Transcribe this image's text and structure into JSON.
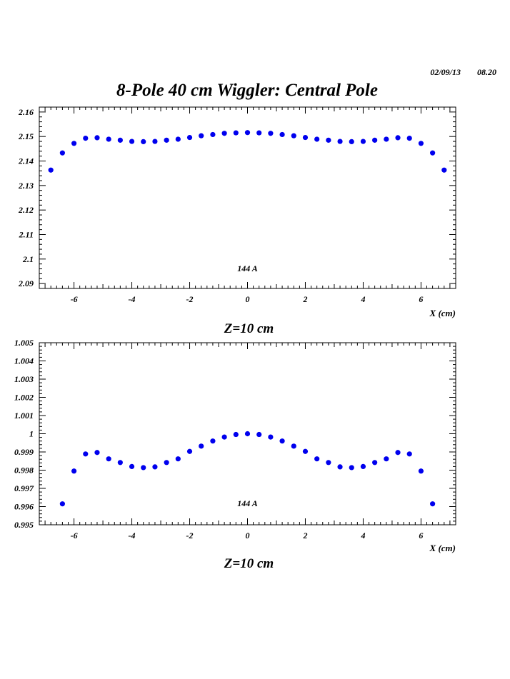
{
  "header": {
    "date": "02/09/13",
    "time": "08.20",
    "title": "8-Pole 40 cm Wiggler: Central Pole"
  },
  "chart_data": [
    {
      "type": "scatter",
      "title": "",
      "xlabel": "X (cm)",
      "ylabel": "",
      "caption": "Z=10 cm",
      "annotation": "144 A",
      "xlim": [
        -7.2,
        7.2
      ],
      "ylim": [
        2.088,
        2.162
      ],
      "xticks": [
        -6,
        -4,
        -2,
        0,
        2,
        4,
        6
      ],
      "xtick_labels": [
        "-6",
        "-4",
        "-2",
        "0",
        "2",
        "4",
        "6"
      ],
      "yticks": [
        2.09,
        2.1,
        2.11,
        2.12,
        2.13,
        2.14,
        2.15,
        2.16
      ],
      "ytick_labels": [
        "2.09",
        "2.1",
        "2.11",
        "2.12",
        "2.13",
        "2.14",
        "2.15",
        "2.16"
      ],
      "grid": false,
      "marker_color": "#0000ee",
      "series": [
        {
          "x": [
            -6.8,
            -6.4,
            -6.0,
            -5.6,
            -5.2,
            -4.8,
            -4.4,
            -4.0,
            -3.6,
            -3.2,
            -2.8,
            -2.4,
            -2.0,
            -1.6,
            -1.2,
            -0.8,
            -0.4,
            0.0,
            0.4,
            0.8,
            1.2,
            1.6,
            2.0,
            2.4,
            2.8,
            3.2,
            3.6,
            4.0,
            4.4,
            4.8,
            5.2,
            5.6,
            6.0,
            6.4,
            6.8
          ],
          "y": [
            2.1363,
            2.1433,
            2.1472,
            2.1493,
            2.1495,
            2.1489,
            2.1485,
            2.148,
            2.1479,
            2.148,
            2.1485,
            2.1489,
            2.1496,
            2.1503,
            2.1508,
            2.1513,
            2.1515,
            2.1516,
            2.1515,
            2.1513,
            2.1508,
            2.1503,
            2.1496,
            2.1489,
            2.1485,
            2.148,
            2.1479,
            2.148,
            2.1485,
            2.1489,
            2.1495,
            2.1493,
            2.1472,
            2.1433,
            2.1363
          ]
        }
      ]
    },
    {
      "type": "scatter",
      "title": "",
      "xlabel": "X (cm)",
      "ylabel": "",
      "caption": "Z=10 cm",
      "annotation": "144 A",
      "xlim": [
        -7.2,
        7.2
      ],
      "ylim": [
        0.995,
        1.005
      ],
      "xticks": [
        -6,
        -4,
        -2,
        0,
        2,
        4,
        6
      ],
      "xtick_labels": [
        "-6",
        "-4",
        "-2",
        "0",
        "2",
        "4",
        "6"
      ],
      "yticks": [
        0.995,
        0.996,
        0.997,
        0.998,
        0.999,
        1.0,
        1.001,
        1.002,
        1.003,
        1.004,
        1.005
      ],
      "ytick_labels": [
        "0.995",
        "0.996",
        "0.997",
        "0.998",
        "0.999",
        "1",
        "1.001",
        "1.002",
        "1.003",
        "1.004",
        "1.005"
      ],
      "grid": false,
      "marker_color": "#0000ee",
      "series": [
        {
          "x": [
            -6.4,
            -6.0,
            -5.6,
            -5.2,
            -4.8,
            -4.4,
            -4.0,
            -3.6,
            -3.2,
            -2.8,
            -2.4,
            -2.0,
            -1.6,
            -1.2,
            -0.8,
            -0.4,
            0.0,
            0.4,
            0.8,
            1.2,
            1.6,
            2.0,
            2.4,
            2.8,
            3.2,
            3.6,
            4.0,
            4.4,
            4.8,
            5.2,
            5.6,
            6.0,
            6.4
          ],
          "y": [
            0.99615,
            0.99795,
            0.99889,
            0.99897,
            0.99862,
            0.99842,
            0.9982,
            0.99814,
            0.99818,
            0.99842,
            0.99862,
            0.99903,
            0.99932,
            0.9996,
            0.99982,
            0.99996,
            1.0,
            0.99996,
            0.99982,
            0.9996,
            0.99932,
            0.99903,
            0.99862,
            0.99842,
            0.99818,
            0.99814,
            0.9982,
            0.99842,
            0.99862,
            0.99897,
            0.99889,
            0.99795,
            0.99615
          ]
        }
      ]
    }
  ]
}
